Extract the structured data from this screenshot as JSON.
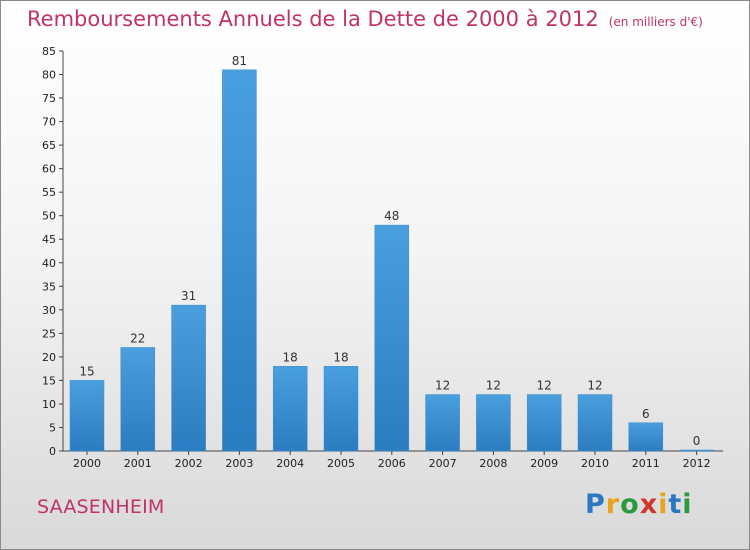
{
  "chart_data": {
    "type": "bar",
    "title": "Remboursements Annuels de la Dette de 2000 à 2012",
    "unit_note": "(en milliers d'€)",
    "categories": [
      "2000",
      "2001",
      "2002",
      "2003",
      "2004",
      "2005",
      "2006",
      "2007",
      "2008",
      "2009",
      "2010",
      "2011",
      "2012"
    ],
    "values": [
      15,
      22,
      31,
      81,
      18,
      18,
      48,
      12,
      12,
      12,
      12,
      6,
      0
    ],
    "ylim": [
      0,
      85
    ],
    "yticks": [
      0,
      5,
      10,
      15,
      20,
      25,
      30,
      35,
      40,
      45,
      50,
      55,
      60,
      65,
      70,
      75,
      80,
      85
    ],
    "grid": false,
    "bar_color": "#4a9fde",
    "bar_color_dark": "#2b7cc0"
  },
  "footer": {
    "city": "SAASENHEIM",
    "logo_letters": [
      {
        "ch": "P",
        "color": "#2b78c2"
      },
      {
        "ch": "r",
        "color": "#e8a320"
      },
      {
        "ch": "o",
        "color": "#2b9a3e"
      },
      {
        "ch": "x",
        "color": "#d2342e"
      },
      {
        "ch": "i",
        "color": "#e8a320"
      },
      {
        "ch": "t",
        "color": "#2b78c2"
      },
      {
        "ch": "i",
        "color": "#2b9a3e"
      }
    ]
  }
}
